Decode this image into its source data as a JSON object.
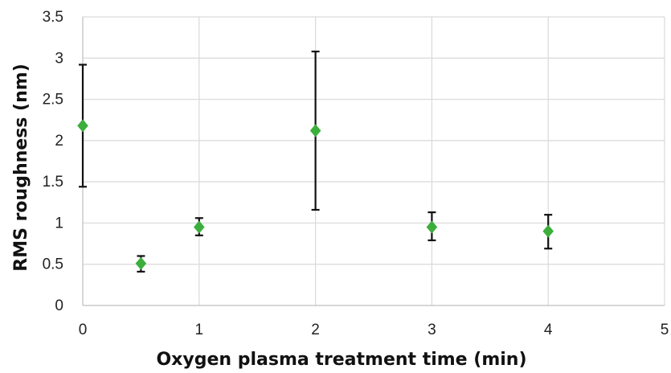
{
  "chart_data": {
    "type": "scatter",
    "title": "",
    "xlabel": "Oxygen plasma treatment time  (min)",
    "ylabel": "RMS roughness (nm)",
    "xlim": [
      0,
      5
    ],
    "ylim": [
      0,
      3.5
    ],
    "x_ticks": [
      "0",
      "1",
      "2",
      "3",
      "4",
      "5"
    ],
    "y_ticks": [
      "0",
      "0.5",
      "1",
      "1.5",
      "2",
      "2.5",
      "3",
      "3.5"
    ],
    "grid": true,
    "legend": "none",
    "marker": "diamond",
    "marker_color": "#3cae3c",
    "errorbar_color": "#111111",
    "series": [
      {
        "points": [
          {
            "x": 0,
            "y": 2.18,
            "err_low": 1.44,
            "err_high": 2.92
          },
          {
            "x": 0.5,
            "y": 0.51,
            "err_low": 0.41,
            "err_high": 0.6
          },
          {
            "x": 1,
            "y": 0.95,
            "err_low": 0.85,
            "err_high": 1.06
          },
          {
            "x": 2,
            "y": 2.12,
            "err_low": 1.16,
            "err_high": 3.08
          },
          {
            "x": 3,
            "y": 0.95,
            "err_low": 0.79,
            "err_high": 1.13
          },
          {
            "x": 4,
            "y": 0.9,
            "err_low": 0.69,
            "err_high": 1.1
          }
        ]
      }
    ]
  }
}
